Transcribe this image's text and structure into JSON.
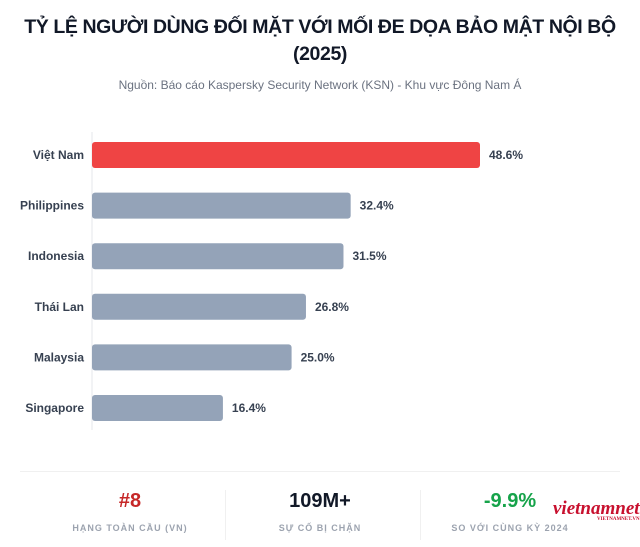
{
  "chart_data": {
    "type": "bar",
    "orientation": "horizontal",
    "title": "TỶ LỆ NGƯỜI DÙNG ĐỐI MẶT VỚI MỐI ĐE DỌA BẢO MẬT NỘI BỘ (2025)",
    "subtitle": "Nguồn: Báo cáo Kaspersky Security Network (KSN) - Khu vực Đông Nam Á",
    "categories": [
      "Việt Nam",
      "Philippines",
      "Indonesia",
      "Thái Lan",
      "Malaysia",
      "Singapore"
    ],
    "values": [
      48.6,
      32.4,
      31.5,
      26.8,
      25.0,
      16.4
    ],
    "data_labels": [
      "48.6%",
      "32.4%",
      "31.5%",
      "26.8%",
      "25.0%",
      "16.4%"
    ],
    "highlight_color": "#ef4444",
    "bar_color": "#94a3b8",
    "grid": false
  },
  "stats": [
    {
      "value": "#8",
      "label": "HẠNG TOÀN CẦU (VN)",
      "color": "#c62828"
    },
    {
      "value": "109M+",
      "label": "SỰ CỐ BỊ CHẶN",
      "color": "#111827"
    },
    {
      "value": "-9.9%",
      "label": "SO VỚI CÙNG KỲ 2024",
      "color": "#16a34a"
    }
  ],
  "watermark": {
    "text": "vietnamnet",
    "sub": "VIETNAMNET.VN"
  }
}
